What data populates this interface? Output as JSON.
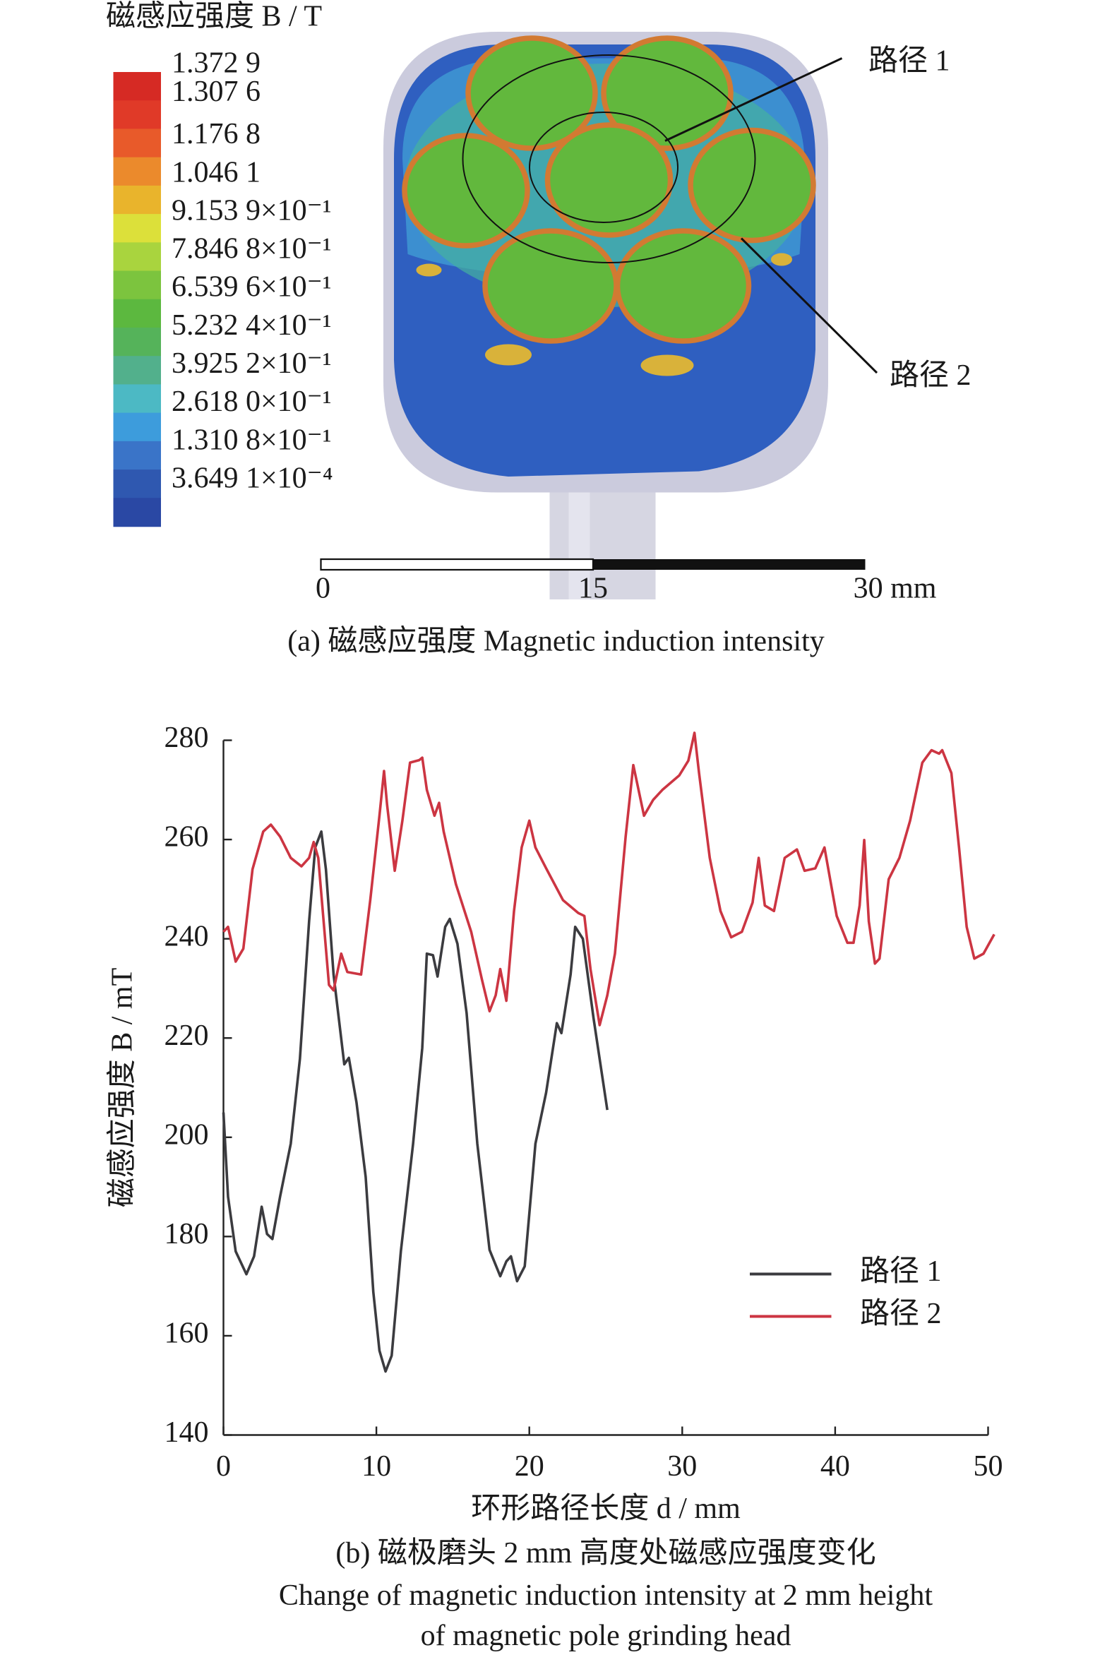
{
  "figure_a": {
    "colorbar_title": "磁感应强度 B / T",
    "colorbar_labels": [
      "1.372 9",
      "1.307 6",
      "1.176 8",
      "1.046 1",
      "9.153 9×10⁻¹",
      "7.846 8×10⁻¹",
      "6.539 6×10⁻¹",
      "5.232 4×10⁻¹",
      "3.925 2×10⁻¹",
      "2.618 0×10⁻¹",
      "1.310 8×10⁻¹",
      "3.649 1×10⁻⁴"
    ],
    "path_labels": [
      "路径 1",
      "路径 2"
    ],
    "scale_labels": [
      "0",
      "15",
      "30 mm"
    ],
    "caption": "(a) 磁感应强度 Magnetic induction intensity"
  },
  "chart_data": {
    "type": "line",
    "xlabel": "环形路径长度 d / mm",
    "ylabel": "磁感应强度 B / mT",
    "captions": [
      "(b) 磁极磨头 2 mm 高度处磁感应强度变化",
      "Change of magnetic induction intensity at 2 mm height",
      "of magnetic pole grinding head"
    ],
    "xlim": [
      0,
      50
    ],
    "xticks": [
      0,
      10,
      20,
      30,
      40,
      50
    ],
    "ylim": [
      140,
      280
    ],
    "yticks": [
      140,
      160,
      180,
      200,
      220,
      240,
      260,
      280
    ],
    "legend": "lower right",
    "series": [
      {
        "name": "路径 1",
        "color": "#3b3b3f",
        "x": [
          0,
          0.3,
          0.8,
          1.5,
          2.0,
          2.5,
          2.85,
          3.2,
          3.7,
          4.4,
          5.0,
          5.6,
          6.0,
          6.4,
          6.7,
          7.2,
          7.9,
          8.2,
          8.7,
          9.3,
          9.8,
          10.2,
          10.6,
          11.0,
          11.6,
          12.4,
          13.0,
          13.3,
          13.7,
          14.0,
          14.5,
          14.8,
          15.3,
          15.9,
          16.6,
          17.4,
          18.1,
          18.5,
          18.8,
          19.2,
          19.7,
          20.4,
          21.1,
          21.8,
          22.1,
          22.7,
          23.0,
          23.5,
          24.2,
          25.1
        ],
        "values": [
          205,
          188,
          177,
          172.4,
          176,
          186,
          180.5,
          179.5,
          188,
          198.7,
          215.8,
          243.5,
          258.4,
          261.6,
          254,
          232.8,
          214.7,
          216,
          207,
          192,
          168.8,
          157,
          152.8,
          156,
          177,
          198.7,
          218,
          237,
          236.7,
          232.4,
          242.4,
          244,
          239,
          225,
          198.7,
          177.3,
          172,
          175,
          176,
          171,
          174,
          198.7,
          209,
          223,
          221,
          232.8,
          242.4,
          240,
          224,
          205.5
        ]
      },
      {
        "name": "路径 2",
        "color": "#cc3542",
        "x": [
          0,
          0.3,
          0.8,
          1.3,
          1.9,
          2.6,
          3.1,
          3.7,
          4.4,
          5.1,
          5.6,
          5.9,
          6.2,
          6.9,
          7.2,
          7.7,
          8.1,
          9.0,
          9.6,
          10.2,
          10.5,
          10.7,
          11.2,
          11.7,
          12.2,
          12.8,
          13.0,
          13.3,
          13.8,
          14.1,
          14.4,
          15.2,
          16.2,
          16.9,
          17.4,
          17.8,
          18.1,
          18.5,
          19.0,
          19.5,
          20.0,
          20.4,
          21.1,
          22.2,
          23.2,
          23.6,
          24.0,
          24.6,
          25.1,
          25.6,
          26.3,
          26.8,
          27.5,
          28.1,
          28.7,
          29.8,
          30.4,
          30.8,
          31.1,
          31.8,
          32.5,
          33.2,
          33.9,
          34.6,
          35.0,
          35.4,
          36.0,
          36.7,
          37.5,
          38.0,
          38.7,
          39.3,
          40.1,
          40.8,
          41.2,
          41.6,
          41.9,
          42.2,
          42.6,
          42.9,
          43.5,
          44.2,
          44.9,
          45.7,
          46.3,
          46.8,
          47.0,
          47.6,
          48.1,
          48.6,
          49.1,
          49.7,
          50.4
        ],
        "values": [
          241.4,
          242.4,
          235.4,
          238,
          254,
          261.6,
          263,
          260.6,
          256.3,
          254.6,
          256.3,
          259.5,
          256.3,
          230.7,
          229.6,
          237,
          233.3,
          232.8,
          247.8,
          264.8,
          273.8,
          267,
          253.7,
          263.8,
          275.5,
          276,
          276.5,
          270,
          264.8,
          267.4,
          261.6,
          251,
          241.4,
          231.8,
          225.4,
          228.6,
          233.9,
          227.5,
          245.6,
          258.4,
          263.8,
          258.4,
          254.2,
          247.8,
          245.2,
          244.6,
          233.9,
          222.6,
          228.6,
          237,
          260.6,
          275,
          264.8,
          268,
          270,
          272.9,
          275.9,
          281.5,
          273.4,
          256.3,
          245.6,
          240.3,
          241.4,
          247.3,
          256.3,
          246.7,
          245.6,
          256.3,
          258,
          253.7,
          254.2,
          258.4,
          244.6,
          239.2,
          239.2,
          246.7,
          259.9,
          243.5,
          235,
          236,
          252,
          256.3,
          263.8,
          275.5,
          278,
          277.3,
          278,
          273.4,
          258.4,
          242.4,
          236,
          237,
          240.9
        ]
      }
    ]
  }
}
